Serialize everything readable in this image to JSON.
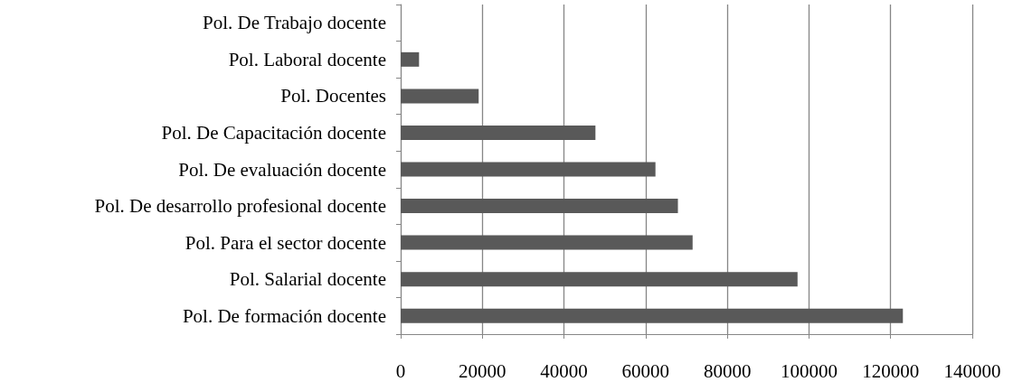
{
  "chart_data": {
    "type": "bar",
    "orientation": "horizontal",
    "categories": [
      "Pol. De Trabajo docente",
      "Pol. Laboral docente",
      "Pol. Docentes",
      "Pol. De Capacitación docente",
      "Pol. De evaluación docente",
      "Pol. De desarrollo profesional docente",
      "Pol. Para el sector docente",
      "Pol. Salarial docente",
      "Pol. De formación docente"
    ],
    "values": [
      0,
      4500,
      19100,
      47700,
      62400,
      67900,
      71500,
      97200,
      123000
    ],
    "color": "#595959",
    "xlim": [
      0,
      140000
    ],
    "xticks": [
      0,
      20000,
      40000,
      60000,
      80000,
      100000,
      120000,
      140000
    ],
    "grid": "x"
  }
}
